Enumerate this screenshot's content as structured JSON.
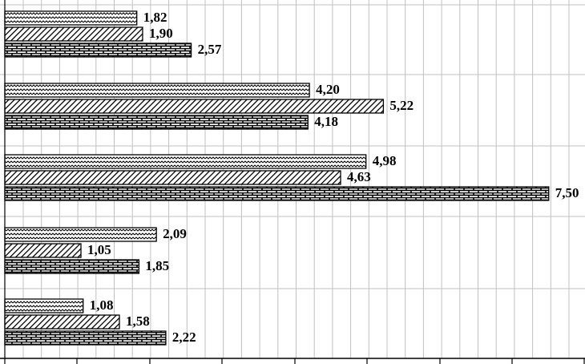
{
  "chart_data": {
    "type": "bar",
    "orientation": "horizontal",
    "grid": true,
    "groups": [
      {
        "values": [
          "1,82",
          "1,90",
          "2,57"
        ],
        "numbers": [
          1.82,
          1.9,
          2.57
        ]
      },
      {
        "values": [
          "4,20",
          "5,22",
          "4,18"
        ],
        "numbers": [
          4.2,
          5.22,
          4.18
        ]
      },
      {
        "values": [
          "4,98",
          "4,63",
          "7,50"
        ],
        "numbers": [
          4.98,
          4.63,
          7.5
        ]
      },
      {
        "values": [
          "2,09",
          "1,05",
          "1,85"
        ],
        "numbers": [
          2.09,
          1.05,
          1.85
        ]
      },
      {
        "values": [
          "1,08",
          "1,58",
          "2,22"
        ],
        "numbers": [
          1.08,
          1.58,
          2.22
        ]
      }
    ],
    "series_patterns": [
      "wave",
      "diagonal-hatch",
      "brick"
    ],
    "colors": {
      "bar_stroke": "#000000",
      "grid": "#c0c0c0",
      "axis": "#000000",
      "background": "#ffffff"
    }
  }
}
